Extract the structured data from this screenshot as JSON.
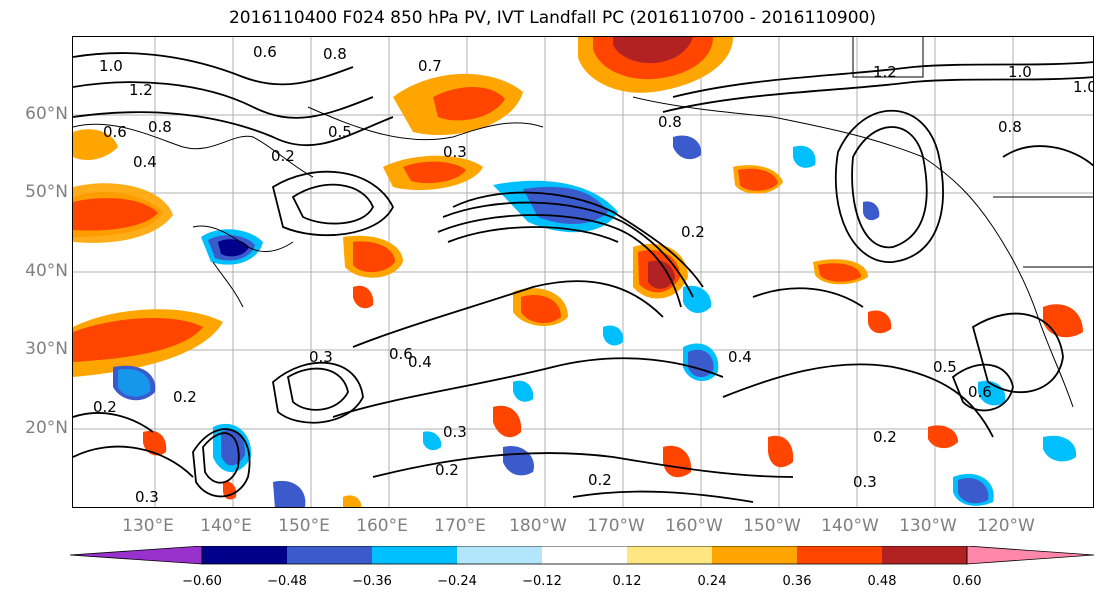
{
  "title": "2016110400 F024 850 hPa PV, IVT Landfall PC (2016110700 - 2016110900)",
  "map": {
    "lat_labels": [
      "60°N",
      "50°N",
      "40°N",
      "30°N",
      "20°N"
    ],
    "lon_labels": [
      "130°E",
      "140°E",
      "150°E",
      "160°E",
      "170°E",
      "180°W",
      "170°W",
      "160°W",
      "150°W",
      "140°W",
      "130°W",
      "120°W"
    ],
    "contour_labels": [
      "1.0",
      "1.2",
      "0.6",
      "0.8",
      "0.4",
      "0.6",
      "0.7",
      "0.8",
      "0.3",
      "0.2",
      "0.5",
      "0.8",
      "1.0",
      "1.2",
      "1.0",
      "0.8",
      "0.2",
      "0.6",
      "0.4",
      "0.3",
      "0.2",
      "0.3",
      "0.2",
      "0.2",
      "0.3",
      "0.5",
      "0.4",
      "0.6",
      "0.2",
      "0.3",
      "0.2"
    ]
  },
  "colorbar": {
    "colors": [
      "#9932cc",
      "#00008b",
      "#3b5bcc",
      "#00bfff",
      "#b3e5fc",
      "#ffffff",
      "#ffe680",
      "#ffa500",
      "#ff4500",
      "#b22222",
      "#ff88aa"
    ],
    "tick_labels": [
      "−0.60",
      "−0.48",
      "−0.36",
      "−0.24",
      "−0.12",
      "0.12",
      "0.24",
      "0.36",
      "0.48",
      "0.60"
    ]
  }
}
